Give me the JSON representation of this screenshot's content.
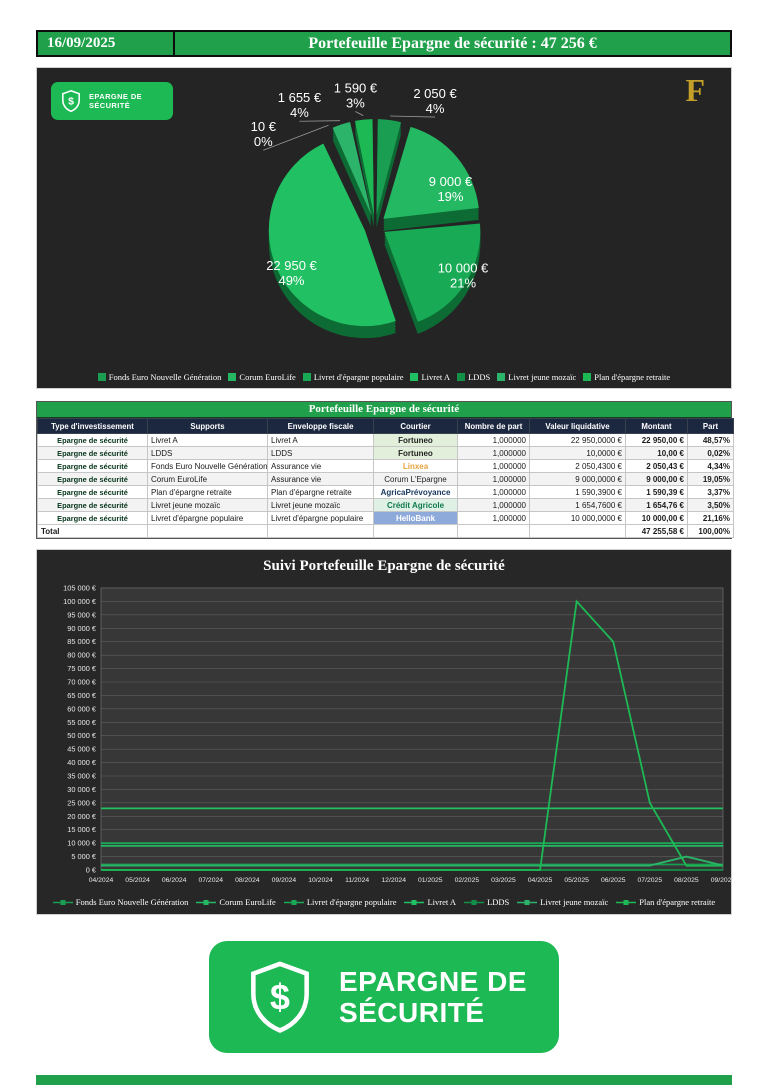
{
  "header": {
    "date": "16/09/2025",
    "title": "Portefeuille Epargne de sécurité : 47 256 €"
  },
  "badge": {
    "line1": "EPARGNE DE",
    "line2": "SÉCURITÉ"
  },
  "logo": "F",
  "palette": {
    "green": "#21a04c",
    "badge_green": "#1db954",
    "gold": "#c5a028",
    "thead": "#1c2740",
    "pie_side": "#0d6b34",
    "series": [
      "#1a9e52",
      "#25b863",
      "#18aa55",
      "#21c063",
      "#148f47",
      "#2cb56a",
      "#1db954"
    ]
  },
  "chart_data": [
    {
      "type": "pie",
      "title": "Portefeuille Epargne de sécurité",
      "legend_position": "bottom",
      "slices": [
        {
          "label": "Fonds Euro Nouvelle Génération",
          "value": 2050.43,
          "amount_label": "2 050 €",
          "pct_label": "4%"
        },
        {
          "label": "Corum EuroLife",
          "value": 9000.0,
          "amount_label": "9 000 €",
          "pct_label": "19%"
        },
        {
          "label": "Livret d'épargne populaire",
          "value": 10000.0,
          "amount_label": "10 000 €",
          "pct_label": "21%"
        },
        {
          "label": "Livret A",
          "value": 22950.0,
          "amount_label": "22 950 €",
          "pct_label": "49%"
        },
        {
          "label": "LDDS",
          "value": 10.0,
          "amount_label": "10 €",
          "pct_label": "0%"
        },
        {
          "label": "Livret jeune mozaïc",
          "value": 1654.76,
          "amount_label": "1 655 €",
          "pct_label": "4%"
        },
        {
          "label": "Plan d'épargne retraite",
          "value": 1590.39,
          "amount_label": "1 590 €",
          "pct_label": "3%"
        }
      ]
    },
    {
      "type": "line",
      "title": "Suivi Portefeuille Epargne de sécurité",
      "xlabel": "",
      "ylabel": "",
      "ylim": [
        0,
        105000
      ],
      "ytick_step": 5000,
      "grid": true,
      "legend_position": "bottom",
      "x": [
        "04/2024",
        "05/2024",
        "06/2024",
        "07/2024",
        "08/2024",
        "09/2024",
        "10/2024",
        "11/2024",
        "12/2024",
        "01/2025",
        "02/2025",
        "03/2025",
        "04/2025",
        "05/2025",
        "06/2025",
        "07/2025",
        "08/2025",
        "09/2025"
      ],
      "series": [
        {
          "name": "Fonds Euro Nouvelle Génération",
          "values": [
            2050,
            2050,
            2050,
            2050,
            2050,
            2050,
            2050,
            2050,
            2050,
            2050,
            2050,
            2050,
            2050,
            2050,
            2050,
            2050,
            2050,
            2050
          ]
        },
        {
          "name": "Corum EuroLife",
          "values": [
            9000,
            9000,
            9000,
            9000,
            9000,
            9000,
            9000,
            9000,
            9000,
            9000,
            9000,
            9000,
            9000,
            9000,
            9000,
            9000,
            9000,
            9000
          ]
        },
        {
          "name": "Livret d'épargne populaire",
          "values": [
            10000,
            10000,
            10000,
            10000,
            10000,
            10000,
            10000,
            10000,
            10000,
            10000,
            10000,
            10000,
            10000,
            10000,
            10000,
            10000,
            10000,
            10000
          ]
        },
        {
          "name": "Livret A",
          "values": [
            22950,
            22950,
            22950,
            22950,
            22950,
            22950,
            22950,
            22950,
            22950,
            22950,
            22950,
            22950,
            22950,
            22950,
            22950,
            22950,
            22950,
            22950
          ]
        },
        {
          "name": "LDDS",
          "values": [
            10,
            10,
            10,
            10,
            10,
            10,
            10,
            10,
            10,
            10,
            10,
            10,
            10,
            10,
            10,
            10,
            10,
            10
          ]
        },
        {
          "name": "Livret jeune mozaïc",
          "values": [
            1655,
            1655,
            1655,
            1655,
            1655,
            1655,
            1655,
            1655,
            1655,
            1655,
            1655,
            1655,
            1655,
            1655,
            1655,
            1655,
            5000,
            1655
          ]
        },
        {
          "name": "Plan d'épargne retraite",
          "values": [
            0,
            0,
            0,
            0,
            0,
            0,
            0,
            0,
            0,
            0,
            0,
            0,
            0,
            100000,
            85000,
            25000,
            1600,
            1590
          ]
        }
      ]
    }
  ],
  "table": {
    "title": "Portefeuille Epargne de sécurité",
    "columns": [
      "Type d'investissement",
      "Supports",
      "Enveloppe fiscale",
      "Courtier",
      "Nombre de part",
      "Valeur liquidative",
      "Montant",
      "Part"
    ],
    "rows": [
      {
        "type": "Epargne de sécurité",
        "support": "Livret A",
        "enveloppe": "Livret A",
        "courtier": "Fortuneo",
        "courtier_style": {
          "bg": "#e2efda",
          "color": "#1f1f1f",
          "bold": true
        },
        "parts": "1,000000",
        "valeur": "22 950,0000 €",
        "montant": "22 950,00 €",
        "part": "48,57%"
      },
      {
        "type": "Epargne de sécurité",
        "support": "LDDS",
        "enveloppe": "LDDS",
        "courtier": "Fortuneo",
        "courtier_style": {
          "bg": "#e2efda",
          "color": "#1f1f1f",
          "bold": true
        },
        "parts": "1,000000",
        "valeur": "10,0000 €",
        "montant": "10,00 €",
        "part": "0,02%"
      },
      {
        "type": "Epargne de sécurité",
        "support": "Fonds Euro Nouvelle Génération",
        "enveloppe": "Assurance vie",
        "courtier": "Linxea",
        "courtier_style": {
          "bg": "",
          "color": "#e8a33d",
          "bold": true
        },
        "parts": "1,000000",
        "valeur": "2 050,4300 €",
        "montant": "2 050,43 €",
        "part": "4,34%"
      },
      {
        "type": "Epargne de sécurité",
        "support": "Corum EuroLife",
        "enveloppe": "Assurance vie",
        "courtier": "Corum L'Epargne",
        "courtier_style": {
          "bg": "",
          "color": "#1f1f1f",
          "bold": false
        },
        "parts": "1,000000",
        "valeur": "9 000,0000 €",
        "montant": "9 000,00 €",
        "part": "19,05%"
      },
      {
        "type": "Epargne de sécurité",
        "support": "Plan d'épargne retraite",
        "enveloppe": "Plan d'épargne retraite",
        "courtier": "AgricaPrévoyance",
        "courtier_style": {
          "bg": "",
          "color": "#17375e",
          "bold": true
        },
        "parts": "1,000000",
        "valeur": "1 590,3900 €",
        "montant": "1 590,39 €",
        "part": "3,37%"
      },
      {
        "type": "Epargne de sécurité",
        "support": "Livret jeune mozaïc",
        "enveloppe": "Livret jeune mozaïc",
        "courtier": "Crédit Agricole",
        "courtier_style": {
          "bg": "#dff0e5",
          "color": "#0f7a4d",
          "bold": true
        },
        "parts": "1,000000",
        "valeur": "1 654,7600 €",
        "montant": "1 654,76 €",
        "part": "3,50%"
      },
      {
        "type": "Epargne de sécurité",
        "support": "Livret d'épargne populaire",
        "enveloppe": "Livret d'épargne populaire",
        "courtier": "HelloBank",
        "courtier_style": {
          "bg": "#8eaadb",
          "color": "#ffffff",
          "bold": true
        },
        "parts": "1,000000",
        "valeur": "10 000,0000 €",
        "montant": "10 000,00 €",
        "part": "21,16%"
      }
    ],
    "total": {
      "label": "Total",
      "montant": "47 255,58 €",
      "part": "100,00%"
    }
  }
}
